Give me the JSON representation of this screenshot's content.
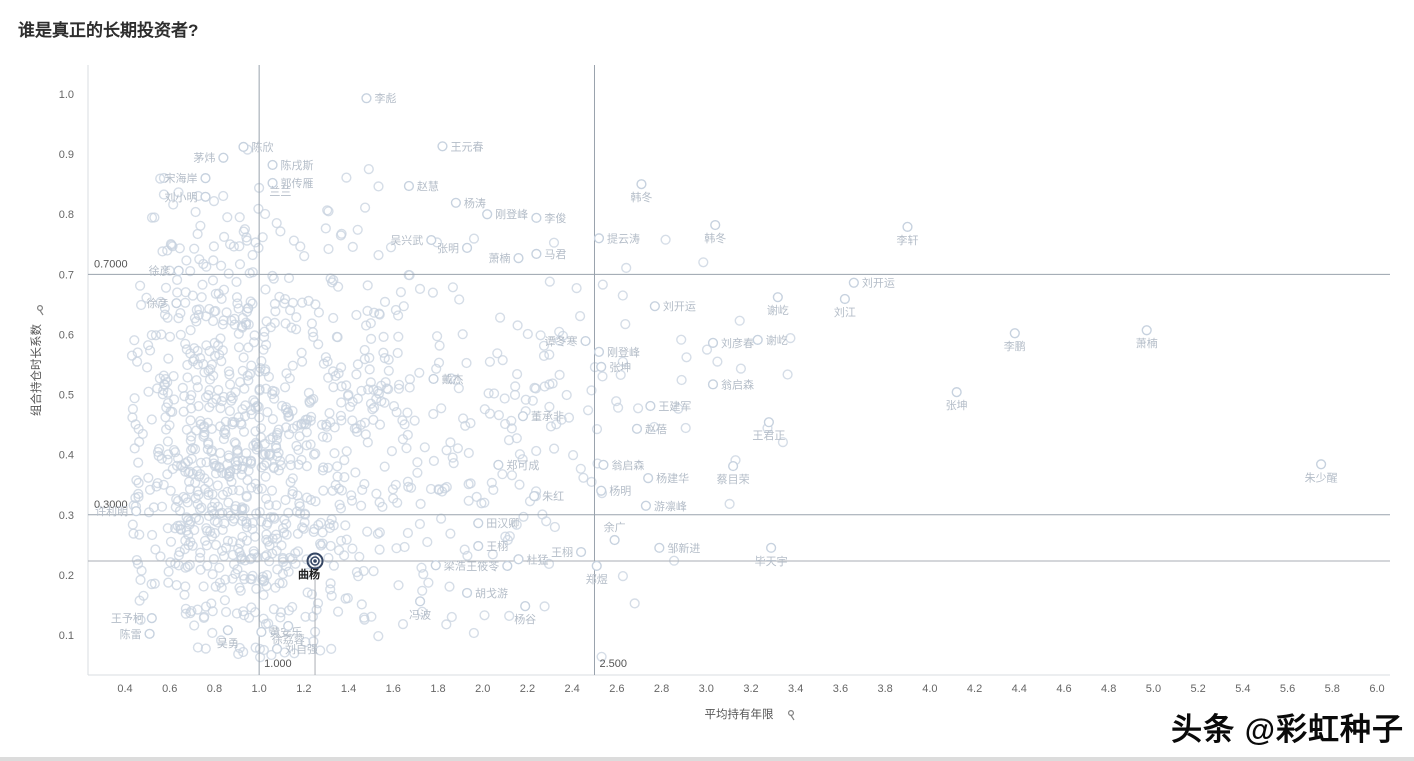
{
  "title": "谁是真正的长期投资者?",
  "watermark": "头条 @彩虹种子",
  "chart_data": {
    "type": "scatter",
    "title": "谁是真正的长期投资者?",
    "xlabel": "平均持有年限",
    "ylabel": "组合持仓时长系数",
    "xlim": [
      0.23,
      6.06
    ],
    "ylim": [
      0.03,
      1.05
    ],
    "x_ticks": {
      "min": 0.4,
      "max": 6.0,
      "step": 0.2
    },
    "y_ticks": {
      "min": 0.1,
      "max": 1.0,
      "step": 0.1
    },
    "grid": false,
    "legend": "none",
    "reference_lines": [
      {
        "axis": "y",
        "value": 0.7,
        "label": "0.7000"
      },
      {
        "axis": "y",
        "value": 0.3,
        "label": "0.3000"
      },
      {
        "axis": "x",
        "value": 1.0,
        "label": "1.000"
      },
      {
        "axis": "x",
        "value": 2.5,
        "label": "2.500"
      }
    ],
    "highlight": {
      "name": "曲杨",
      "x": 1.25,
      "y": 0.223
    },
    "labeled_points": [
      {
        "name": "李彪",
        "x": 1.48,
        "y": 0.993,
        "lp": "r"
      },
      {
        "name": "陈欣",
        "x": 0.93,
        "y": 0.912,
        "lp": "r"
      },
      {
        "name": "茅炜",
        "x": 0.84,
        "y": 0.894,
        "lp": "l"
      },
      {
        "name": "宋海岸",
        "x": 0.76,
        "y": 0.86,
        "lp": "l"
      },
      {
        "name": "刘小明",
        "x": 0.76,
        "y": 0.829,
        "lp": "l"
      },
      {
        "name": "陈戌斯",
        "x": 1.06,
        "y": 0.882,
        "lp": "r"
      },
      {
        "name": "郭传雁",
        "x": 1.06,
        "y": 0.852,
        "lp": "r"
      },
      {
        "name": "兰兰",
        "x": 1.18,
        "y": 0.839,
        "lp": "l",
        "label_only": true
      },
      {
        "name": "王元春",
        "x": 1.82,
        "y": 0.913,
        "lp": "r"
      },
      {
        "name": "赵慧",
        "x": 1.67,
        "y": 0.847,
        "lp": "r"
      },
      {
        "name": "杨涛",
        "x": 1.88,
        "y": 0.819,
        "lp": "r"
      },
      {
        "name": "刚登峰",
        "x": 2.02,
        "y": 0.8,
        "lp": "r"
      },
      {
        "name": "李俊",
        "x": 2.24,
        "y": 0.794,
        "lp": "r"
      },
      {
        "name": "吴兴武",
        "x": 1.77,
        "y": 0.757,
        "lp": "l"
      },
      {
        "name": "张明",
        "x": 1.93,
        "y": 0.744,
        "lp": "l"
      },
      {
        "name": "萧楠",
        "x": 2.16,
        "y": 0.727,
        "lp": "l"
      },
      {
        "name": "马君",
        "x": 2.24,
        "y": 0.734,
        "lp": "r"
      },
      {
        "name": "提云涛",
        "x": 2.52,
        "y": 0.76,
        "lp": "r"
      },
      {
        "name": "韩冬",
        "x": 2.71,
        "y": 0.85,
        "lp": "b"
      },
      {
        "name": "韩冬",
        "x": 3.04,
        "y": 0.782,
        "lp": "b"
      },
      {
        "name": "李轩",
        "x": 3.9,
        "y": 0.779,
        "lp": "b"
      },
      {
        "name": "刘开运",
        "x": 3.66,
        "y": 0.686,
        "lp": "r"
      },
      {
        "name": "刘开运",
        "x": 2.77,
        "y": 0.647,
        "lp": "r"
      },
      {
        "name": "谢屹",
        "x": 3.32,
        "y": 0.662,
        "lp": "b"
      },
      {
        "name": "刘江",
        "x": 3.62,
        "y": 0.659,
        "lp": "b"
      },
      {
        "name": "徐彦",
        "x": 0.64,
        "y": 0.706,
        "lp": "l"
      },
      {
        "name": "徐彦",
        "x": 0.63,
        "y": 0.652,
        "lp": "l"
      },
      {
        "name": "谭冬寒",
        "x": 2.46,
        "y": 0.589,
        "lp": "l"
      },
      {
        "name": "刚登峰",
        "x": 2.52,
        "y": 0.571,
        "lp": "r"
      },
      {
        "name": "张坤",
        "x": 2.53,
        "y": 0.546,
        "lp": "r"
      },
      {
        "name": "刘彦春",
        "x": 3.03,
        "y": 0.586,
        "lp": "r"
      },
      {
        "name": "谢屹",
        "x": 3.23,
        "y": 0.591,
        "lp": "r"
      },
      {
        "name": "李鹏",
        "x": 4.38,
        "y": 0.602,
        "lp": "b"
      },
      {
        "name": "萧楠",
        "x": 4.97,
        "y": 0.607,
        "lp": "b"
      },
      {
        "name": "戴杰",
        "x": 1.78,
        "y": 0.526,
        "lp": "r"
      },
      {
        "name": "翁启森",
        "x": 3.03,
        "y": 0.517,
        "lp": "r"
      },
      {
        "name": "张坤",
        "x": 4.12,
        "y": 0.504,
        "lp": "b"
      },
      {
        "name": "王建军",
        "x": 2.75,
        "y": 0.481,
        "lp": "r"
      },
      {
        "name": "董承非",
        "x": 2.18,
        "y": 0.464,
        "lp": "r"
      },
      {
        "name": "赵蓓",
        "x": 2.69,
        "y": 0.443,
        "lp": "r"
      },
      {
        "name": "王君正",
        "x": 3.28,
        "y": 0.454,
        "lp": "b"
      },
      {
        "name": "郑可成",
        "x": 2.07,
        "y": 0.383,
        "lp": "r"
      },
      {
        "name": "翁启森",
        "x": 2.54,
        "y": 0.383,
        "lp": "r"
      },
      {
        "name": "杨建华",
        "x": 2.74,
        "y": 0.361,
        "lp": "r"
      },
      {
        "name": "蔡目荣",
        "x": 3.12,
        "y": 0.381,
        "lp": "b"
      },
      {
        "name": "朱红",
        "x": 2.23,
        "y": 0.331,
        "lp": "r"
      },
      {
        "name": "杨明",
        "x": 2.53,
        "y": 0.34,
        "lp": "r"
      },
      {
        "name": "游凛峰",
        "x": 2.73,
        "y": 0.315,
        "lp": "r"
      },
      {
        "name": "朱少醒",
        "x": 5.75,
        "y": 0.384,
        "lp": "b"
      },
      {
        "name": "许利明",
        "x": 0.45,
        "y": 0.306,
        "lp": "l"
      },
      {
        "name": "田汉卿",
        "x": 1.98,
        "y": 0.286,
        "lp": "r"
      },
      {
        "name": "余广",
        "x": 2.59,
        "y": 0.258,
        "lp": "a"
      },
      {
        "name": "王栩",
        "x": 1.98,
        "y": 0.248,
        "lp": "r"
      },
      {
        "name": "王栩",
        "x": 2.44,
        "y": 0.238,
        "lp": "l"
      },
      {
        "name": "邹新进",
        "x": 2.79,
        "y": 0.245,
        "lp": "r"
      },
      {
        "name": "杜猛",
        "x": 2.16,
        "y": 0.226,
        "lp": "r"
      },
      {
        "name": "梁浩",
        "x": 1.79,
        "y": 0.216,
        "lp": "r"
      },
      {
        "name": "王筱苓",
        "x": 2.11,
        "y": 0.215,
        "lp": "l"
      },
      {
        "name": "毕天宇",
        "x": 3.29,
        "y": 0.245,
        "lp": "b"
      },
      {
        "name": "郑煜",
        "x": 2.51,
        "y": 0.215,
        "lp": "b"
      },
      {
        "name": "胡戈游",
        "x": 1.93,
        "y": 0.17,
        "lp": "r"
      },
      {
        "name": "冯波",
        "x": 1.72,
        "y": 0.156,
        "lp": "b"
      },
      {
        "name": "杨谷",
        "x": 2.19,
        "y": 0.148,
        "lp": "b"
      },
      {
        "name": "王予柯",
        "x": 0.52,
        "y": 0.128,
        "lp": "l"
      },
      {
        "name": "陈雷",
        "x": 0.51,
        "y": 0.102,
        "lp": "l"
      },
      {
        "name": "吴勇",
        "x": 0.86,
        "y": 0.108,
        "lp": "b"
      },
      {
        "name": "黄安乐",
        "x": 1.01,
        "y": 0.105,
        "lp": "r"
      },
      {
        "name": "徐荔蓉",
        "x": 1.13,
        "y": 0.115,
        "lp": "b"
      },
      {
        "name": "刘自强",
        "x": 1.08,
        "y": 0.077,
        "lp": "r"
      }
    ],
    "cloud": {
      "seed": 7,
      "x_min": 0.43,
      "x_max": 5.9,
      "y_min": 0.06,
      "y_max": 1.0,
      "clusters": [
        {
          "n": 380,
          "cx": 0.95,
          "cy": 0.3,
          "sx": 0.26,
          "sy": 0.11
        },
        {
          "n": 240,
          "cx": 0.8,
          "cy": 0.5,
          "sx": 0.2,
          "sy": 0.13
        },
        {
          "n": 150,
          "cx": 1.35,
          "cy": 0.4,
          "sx": 0.3,
          "sy": 0.13
        },
        {
          "n": 110,
          "cx": 1.85,
          "cy": 0.42,
          "sx": 0.38,
          "sy": 0.14
        },
        {
          "n": 90,
          "cx": 0.85,
          "cy": 0.7,
          "sx": 0.18,
          "sy": 0.1
        },
        {
          "n": 70,
          "cx": 1.45,
          "cy": 0.63,
          "sx": 0.3,
          "sy": 0.11
        },
        {
          "n": 45,
          "cx": 2.35,
          "cy": 0.5,
          "sx": 0.35,
          "sy": 0.14
        },
        {
          "n": 18,
          "cx": 3.0,
          "cy": 0.55,
          "sx": 0.35,
          "sy": 0.12
        },
        {
          "n": 30,
          "cx": 1.05,
          "cy": 0.16,
          "sx": 0.35,
          "sy": 0.05
        }
      ]
    },
    "colors": {
      "point": "#c7d2df",
      "label": "#b4bdc8",
      "ref_line": "#9aa3ad",
      "axis_line": "#d9dde2",
      "crosshair": "#aaaeb4",
      "highlight": "#344563",
      "tick": "#666666",
      "axis_title": "#555555"
    }
  }
}
